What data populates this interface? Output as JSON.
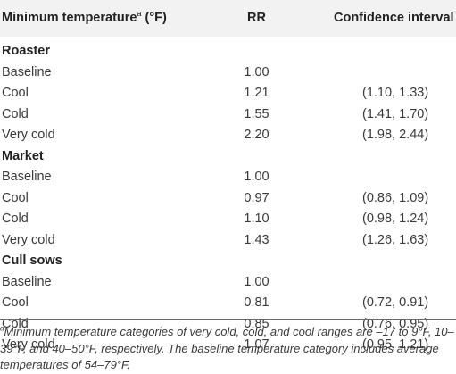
{
  "header": {
    "col1_label": "Minimum temperature",
    "col1_sup": "a",
    "col1_unit": " (°F)",
    "col2_label": "RR",
    "col3_label": "Confidence interval"
  },
  "groups": [
    {
      "name": "Roaster",
      "rows": [
        {
          "category": "Baseline",
          "rr": "1.00",
          "ci": ""
        },
        {
          "category": "Cool",
          "rr": "1.21",
          "ci": "(1.10, 1.33)"
        },
        {
          "category": "Cold",
          "rr": "1.55",
          "ci": "(1.41, 1.70)"
        },
        {
          "category": "Very cold",
          "rr": "2.20",
          "ci": "(1.98, 2.44)"
        }
      ]
    },
    {
      "name": "Market",
      "rows": [
        {
          "category": "Baseline",
          "rr": "1.00",
          "ci": ""
        },
        {
          "category": "Cool",
          "rr": "0.97",
          "ci": "(0.86, 1.09)"
        },
        {
          "category": "Cold",
          "rr": "1.10",
          "ci": "(0.98, 1.24)"
        },
        {
          "category": "Very cold",
          "rr": "1.43",
          "ci": "(1.26, 1.63)"
        }
      ]
    },
    {
      "name": "Cull sows",
      "rows": [
        {
          "category": "Baseline",
          "rr": "1.00",
          "ci": ""
        },
        {
          "category": "Cool",
          "rr": "0.81",
          "ci": "(0.72, 0.91)"
        },
        {
          "category": "Cold",
          "rr": "0.85",
          "ci": "(0.76, 0.95)"
        },
        {
          "category": "Very cold",
          "rr": "1.07",
          "ci": "(0.95, 1.21)"
        }
      ]
    }
  ],
  "footnote": {
    "marker": "a",
    "text": "Minimum temperature categories of very cold, cold, and cool ranges are –17 to 9°F, 10–39°F, and 40–50°F, respectively. The baseline temperature category includes average temperatures of 54–79°F."
  }
}
